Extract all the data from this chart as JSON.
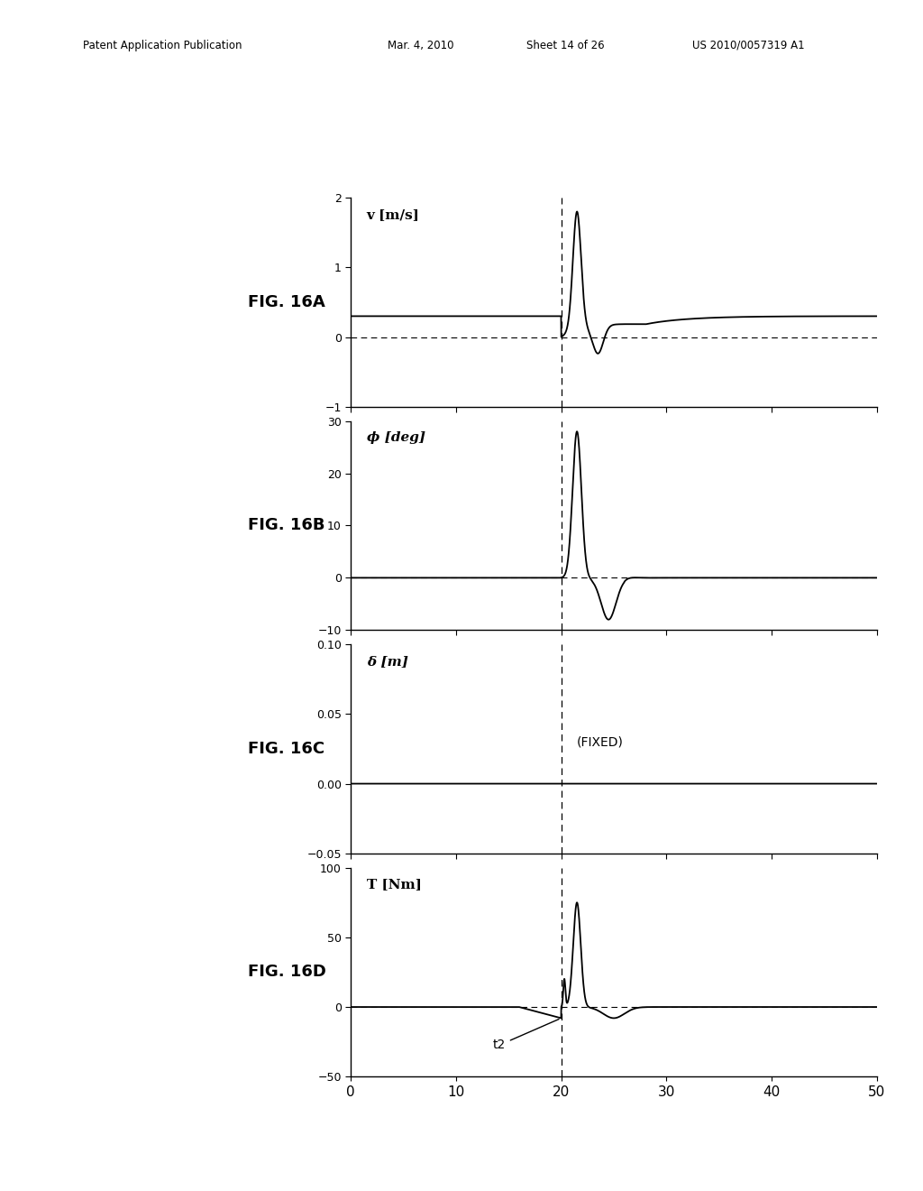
{
  "fig_labels": [
    "FIG. 16A",
    "FIG. 16B",
    "FIG. 16C",
    "FIG. 16D"
  ],
  "xlim": [
    0,
    50
  ],
  "x_ticks": [
    0,
    10,
    20,
    30,
    40,
    50
  ],
  "t_switch": 20,
  "plots": [
    {
      "ylabel_text": "v [m/s]",
      "ylabel_sym": "v",
      "ylabel_unit": "[m/s]",
      "ylim": [
        -1,
        2
      ],
      "yticks": [
        -1,
        0,
        1,
        2
      ],
      "dashed_y": 0,
      "fixed_label": null,
      "t2_label": false
    },
    {
      "ylabel_text": "ϕ [deg]",
      "ylabel_sym": "ϕ",
      "ylabel_unit": "[deg]",
      "ylim": [
        -10,
        30
      ],
      "yticks": [
        -10,
        0,
        10,
        20,
        30
      ],
      "dashed_y": 0,
      "fixed_label": null,
      "t2_label": false
    },
    {
      "ylabel_text": "δ [m]",
      "ylabel_sym": "δ",
      "ylabel_unit": "[m]",
      "ylim": [
        -0.05,
        0.1
      ],
      "yticks": [
        -0.05,
        0,
        0.05,
        0.1
      ],
      "dashed_y": null,
      "fixed_label": "(FIXED)",
      "t2_label": false
    },
    {
      "ylabel_text": "T [Nm]",
      "ylabel_sym": "T",
      "ylabel_unit": "[Nm]",
      "ylim": [
        -50,
        100
      ],
      "yticks": [
        -50,
        0,
        50,
        100
      ],
      "dashed_y": 0,
      "fixed_label": null,
      "t2_label": true
    }
  ],
  "background_color": "#ffffff",
  "line_color": "#000000",
  "header_line1": "Patent Application Publication",
  "header_line2": "Mar. 4, 2010",
  "header_line3": "Sheet 14 of 26",
  "header_line4": "US 2010/0057319 A1"
}
